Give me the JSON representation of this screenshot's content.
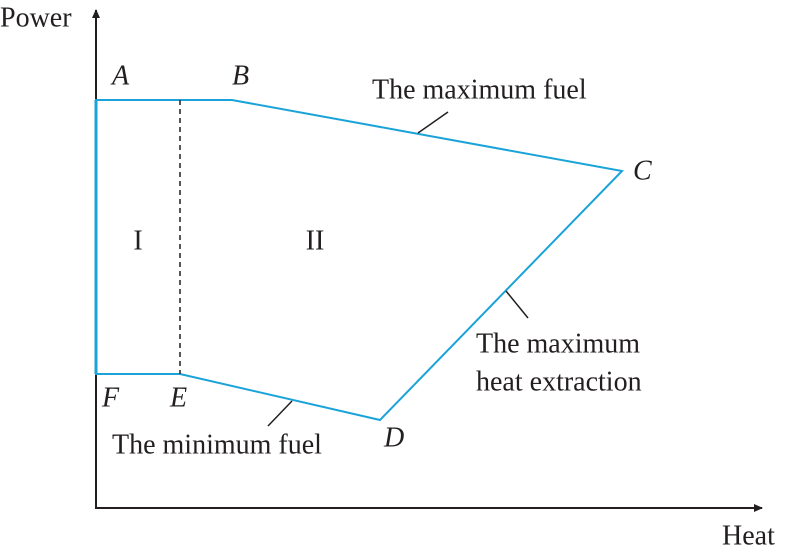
{
  "axes": {
    "y_label": "Power",
    "x_label": "Heat"
  },
  "points": {
    "A": "A",
    "B": "B",
    "C": "C",
    "D": "D",
    "E": "E",
    "F": "F"
  },
  "regions": [
    "I",
    "II"
  ],
  "annotations": {
    "max_fuel": "The maximum fuel",
    "min_fuel": "The minimum fuel",
    "max_heat": [
      "The maximum",
      "heat extraction"
    ]
  }
}
